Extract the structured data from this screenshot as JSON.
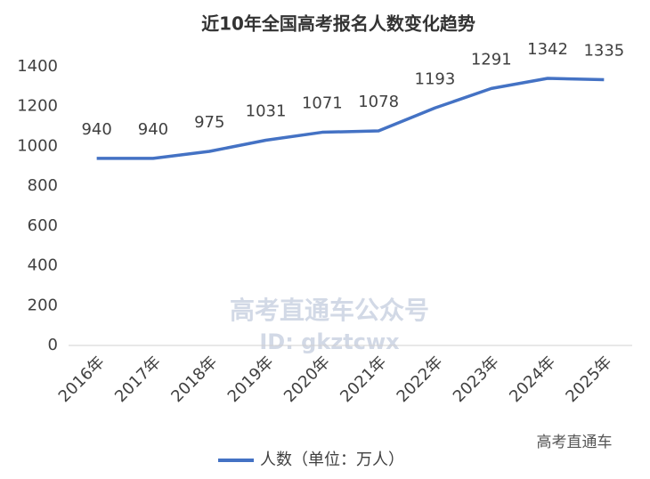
{
  "chart_data": {
    "type": "line",
    "title": "近10年全国高考报名人数变化趋势",
    "categories": [
      "2016年",
      "2017年",
      "2018年",
      "2019年",
      "2020年",
      "2021年",
      "2022年",
      "2023年",
      "2024年",
      "2025年"
    ],
    "series": [
      {
        "name": "人数（单位：万人）",
        "color": "#4472c4",
        "values": [
          940,
          940,
          975,
          1031,
          1071,
          1078,
          1193,
          1291,
          1342,
          1335
        ]
      }
    ],
    "ylim": [
      0,
      1400
    ],
    "yticks": [
      0,
      200,
      400,
      600,
      800,
      1000,
      1200,
      1400
    ],
    "grid": false,
    "legend": "bottom",
    "watermark": [
      "高考直通车公众号",
      "ID: gkztcwx"
    ],
    "source": "高考直通车"
  }
}
